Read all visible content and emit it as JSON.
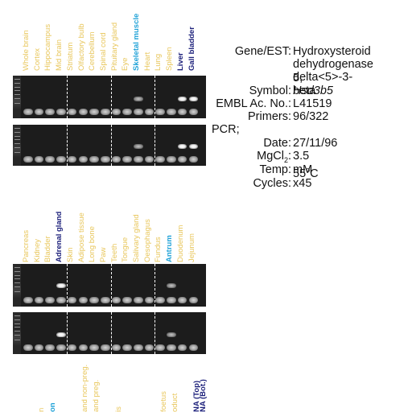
{
  "colors": {
    "tissue_label": "#e8c65a",
    "highlight_cyan": "#22a3d8",
    "highlight_navy": "#1b1f7a",
    "gel_background": "#1c1c1c",
    "band": "#ffffff"
  },
  "panel1": {
    "lanes": [
      {
        "label": "Whole brain",
        "style": "tissue"
      },
      {
        "label": "Cortex",
        "style": "tissue"
      },
      {
        "label": "Hippocampus",
        "style": "tissue"
      },
      {
        "label": "Mid brain",
        "style": "tissue"
      },
      {
        "label": "Striatum",
        "style": "tissue"
      },
      {
        "label": "Olfactory bulb",
        "style": "tissue"
      },
      {
        "label": "Cerebellum",
        "style": "tissue"
      },
      {
        "label": "Spinal cord",
        "style": "tissue"
      },
      {
        "label": "Pituitary gland",
        "style": "tissue"
      },
      {
        "label": "Eye",
        "style": "tissue"
      },
      {
        "label": "Skeletal muscle",
        "style": "cyan"
      },
      {
        "label": "Heart",
        "style": "tissue"
      },
      {
        "label": "Lung",
        "style": "tissue"
      },
      {
        "label": "Spleen",
        "style": "tissue"
      },
      {
        "label": "Liver",
        "style": "navy"
      },
      {
        "label": "Gall bladder",
        "style": "navy"
      }
    ],
    "band_lanes": [
      10,
      14,
      15
    ]
  },
  "panel2": {
    "lanes": [
      {
        "label": "Pancreas",
        "style": "tissue"
      },
      {
        "label": "Kidney",
        "style": "tissue"
      },
      {
        "label": "Bladder",
        "style": "tissue"
      },
      {
        "label": "Adrenal gland",
        "style": "navy"
      },
      {
        "label": "Skin",
        "style": "tissue"
      },
      {
        "label": "Adipose tissue",
        "style": "tissue"
      },
      {
        "label": "Long bone",
        "style": "tissue"
      },
      {
        "label": "Paw",
        "style": "tissue"
      },
      {
        "label": "Teeth",
        "style": "tissue"
      },
      {
        "label": "Tongue",
        "style": "tissue"
      },
      {
        "label": "Salivary gland",
        "style": "tissue"
      },
      {
        "label": "Oesophagus",
        "style": "tissue"
      },
      {
        "label": "Fundus",
        "style": "tissue"
      },
      {
        "label": "Antrum",
        "style": "cyan"
      },
      {
        "label": "Duodenum",
        "style": "tissue"
      },
      {
        "label": "Jejunum",
        "style": "tissue"
      }
    ],
    "band_lanes": [
      3,
      13
    ]
  },
  "panel3_partial_labels": [
    {
      "label": "n",
      "style": "tissue"
    },
    {
      "label": "on",
      "style": "cyan"
    },
    {
      "label": "and non-preg.",
      "style": "tissue"
    },
    {
      "label": "and preg.",
      "style": "tissue"
    },
    {
      "label": "is",
      "style": "tissue"
    },
    {
      "label": "foetus",
      "style": "tissue"
    },
    {
      "label": "oduct",
      "style": "tissue"
    },
    {
      "label": "NA (Top)",
      "style": "navy"
    },
    {
      "label": "NA (Bot.)",
      "style": "navy"
    }
  ],
  "info": {
    "gene_key": "Gene/EST:",
    "gene_lines": [
      "Hydroxysteroid",
      "dehydrogenase 5,",
      "delta<5>-3-beta"
    ],
    "symbol_key": "Symbol:",
    "symbol_val": "Hsd3b5",
    "embl_key": "EMBL Ac. No.:",
    "embl_val": "L41519",
    "primers_key": "Primers:",
    "primers_val": "96/322",
    "pcr_heading": "PCR;",
    "date_key": "Date:",
    "date_val": "27/11/96",
    "mgcl2_key_main": "MgCl",
    "mgcl2_key_sub": "2",
    "mgcl2_key_colon": ":",
    "mgcl2_val": "3.5 mM",
    "temp_key": "Temp:",
    "temp_val_num": "55",
    "temp_val_deg": "o",
    "temp_val_unit": "C",
    "cycles_key": "Cycles:",
    "cycles_val": "x45"
  }
}
